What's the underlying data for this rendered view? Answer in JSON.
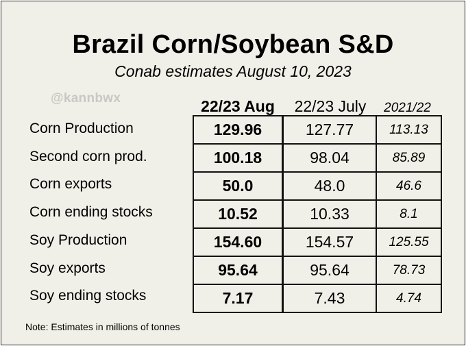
{
  "chart_data": {
    "type": "table",
    "title": "Brazil Corn/Soybean S&D",
    "subtitle": "Conab estimates August 10, 2023",
    "watermark": "@kannbwx",
    "columns": [
      "22/23 Aug",
      "22/23 July",
      "2021/22"
    ],
    "rows": [
      {
        "label": "Corn Production",
        "aug": "129.96",
        "july": "127.77",
        "prev": "113.13"
      },
      {
        "label": "Second corn prod.",
        "aug": "100.18",
        "july": "98.04",
        "prev": "85.89"
      },
      {
        "label": "Corn exports",
        "aug": "50.0",
        "july": "48.0",
        "prev": "46.6"
      },
      {
        "label": "Corn ending stocks",
        "aug": "10.52",
        "july": "10.33",
        "prev": "8.1"
      },
      {
        "label": "Soy Production",
        "aug": "154.60",
        "july": "154.57",
        "prev": "125.55"
      },
      {
        "label": "Soy exports",
        "aug": "95.64",
        "july": "95.64",
        "prev": "78.73"
      },
      {
        "label": "Soy ending stocks",
        "aug": "7.17",
        "july": "7.43",
        "prev": "4.74"
      }
    ],
    "note": "Note: Estimates in millions of tonnes",
    "units": "millions of tonnes"
  },
  "colors": {
    "background": "#f1f0e8",
    "border": "#111111",
    "text": "#000000",
    "watermark": "#c8c8c4"
  }
}
